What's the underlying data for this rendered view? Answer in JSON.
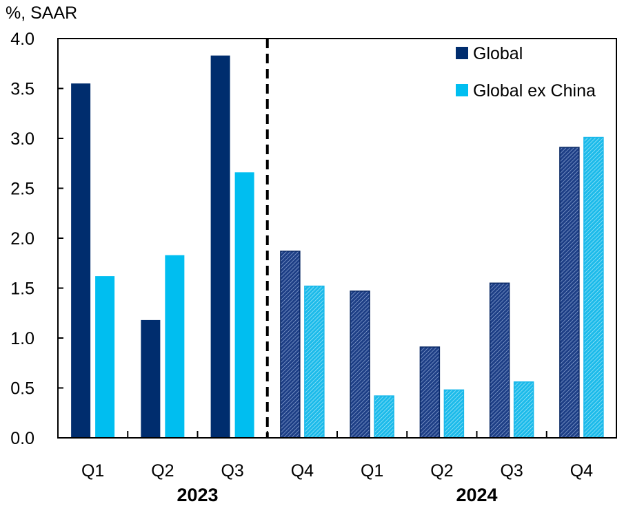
{
  "chart_data": {
    "type": "bar",
    "title": "",
    "unit_label": "%, SAAR",
    "xlabel": "",
    "ylabel": "%, SAAR",
    "ylim": [
      0,
      4.0
    ],
    "yticks": [
      "0.0",
      "0.5",
      "1.0",
      "1.5",
      "2.0",
      "2.5",
      "3.0",
      "3.5",
      "4.0"
    ],
    "ytick_values": [
      0,
      0.5,
      1.0,
      1.5,
      2.0,
      2.5,
      3.0,
      3.5,
      4.0
    ],
    "grid": false,
    "legend_position": "top-right",
    "categories": [
      "Q1",
      "Q2",
      "Q3",
      "Q4",
      "Q1",
      "Q2",
      "Q3",
      "Q4"
    ],
    "year_groups": [
      {
        "label": "2023",
        "start": 0,
        "end": 3
      },
      {
        "label": "2024",
        "start": 4,
        "end": 7
      }
    ],
    "forecast_divider": {
      "after_index": 2,
      "style": "dashed"
    },
    "hatched_from_index": 3,
    "series": [
      {
        "name": "Global",
        "color": "#002D6E",
        "values": [
          3.55,
          1.18,
          3.83,
          1.87,
          1.47,
          0.91,
          1.55,
          2.91
        ]
      },
      {
        "name": "Global ex China",
        "color": "#00BEF0",
        "values": [
          1.62,
          1.83,
          2.66,
          1.52,
          0.42,
          0.48,
          0.56,
          3.01
        ]
      }
    ]
  }
}
